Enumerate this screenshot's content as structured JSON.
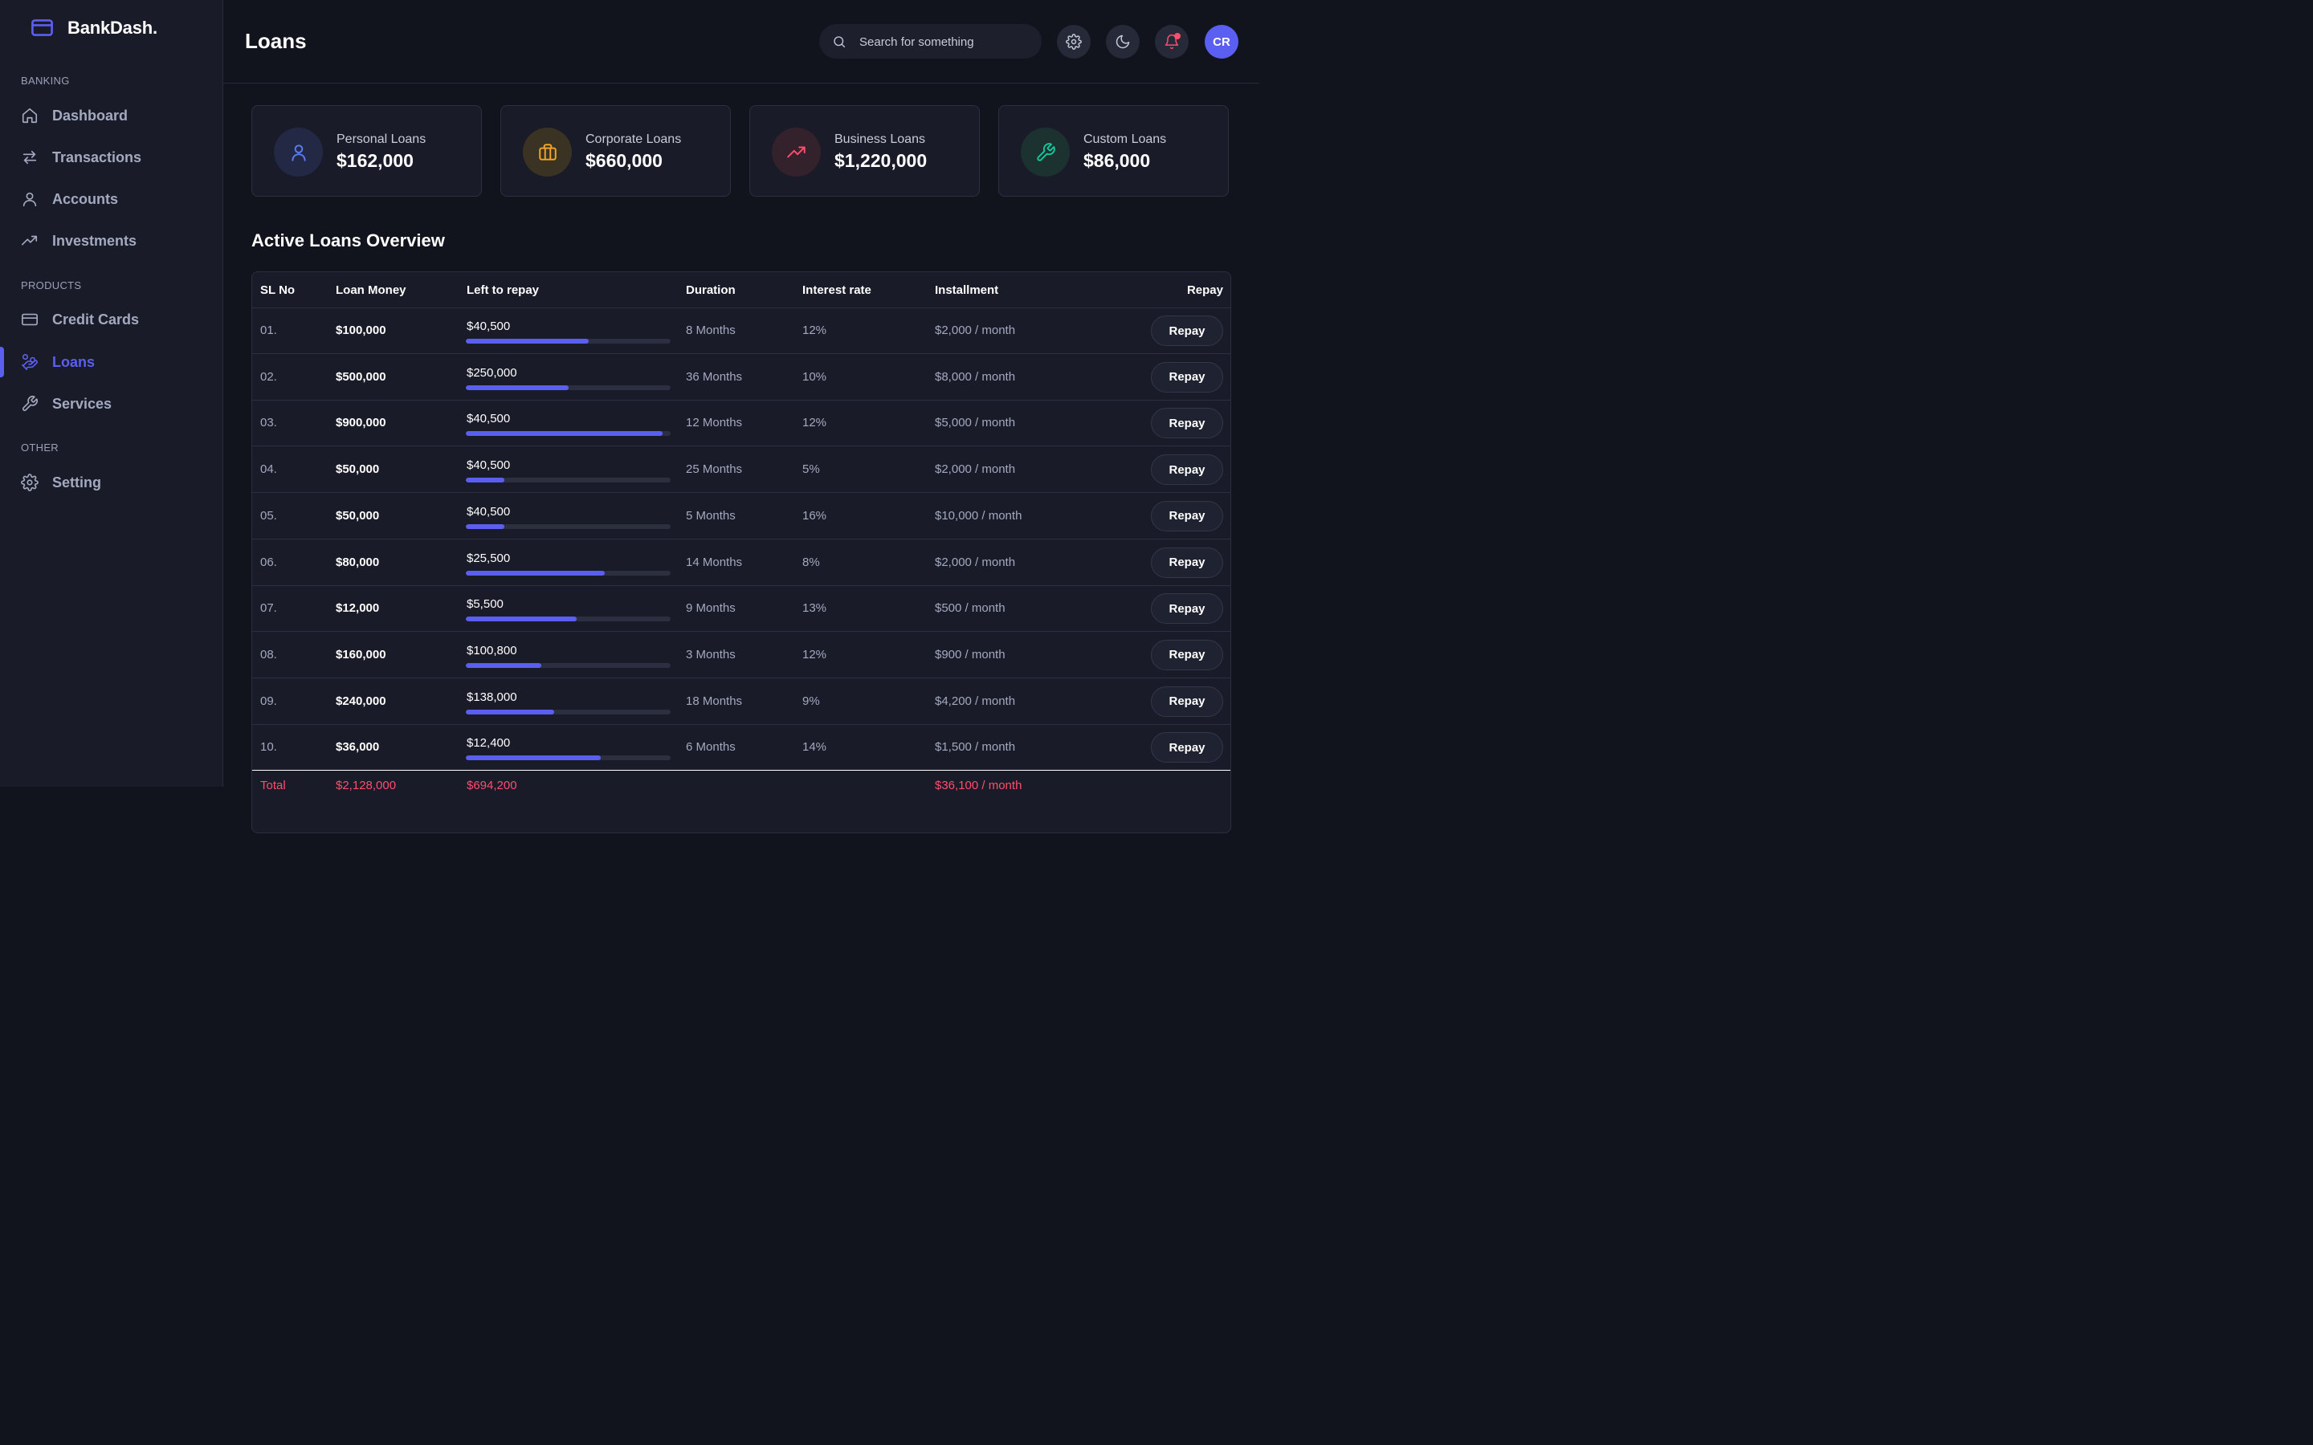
{
  "brand": {
    "name": "BankDash."
  },
  "sidebar": {
    "sections": [
      {
        "label": "BANKING",
        "items": [
          {
            "label": "Dashboard",
            "icon": "home-icon"
          },
          {
            "label": "Transactions",
            "icon": "arrows-swap-icon"
          },
          {
            "label": "Accounts",
            "icon": "user-icon"
          },
          {
            "label": "Investments",
            "icon": "trending-up-icon"
          }
        ]
      },
      {
        "label": "PRODUCTS",
        "items": [
          {
            "label": "Credit Cards",
            "icon": "credit-card-icon"
          },
          {
            "label": "Loans",
            "icon": "hand-coins-icon",
            "active": true
          },
          {
            "label": "Services",
            "icon": "wrench-icon"
          }
        ]
      },
      {
        "label": "OTHER",
        "items": [
          {
            "label": "Setting",
            "icon": "gear-icon"
          }
        ]
      }
    ]
  },
  "header": {
    "title": "Loans",
    "search_placeholder": "Search for something",
    "avatar_initials": "CR",
    "has_notification": true
  },
  "cards": [
    {
      "label": "Personal Loans",
      "value": "$162,000",
      "icon": "user-icon",
      "color": "#5b7cf7",
      "bg": "#232845"
    },
    {
      "label": "Corporate Loans",
      "value": "$660,000",
      "icon": "briefcase-icon",
      "color": "#f5a524",
      "bg": "#3a3222"
    },
    {
      "label": "Business Loans",
      "value": "$1,220,000",
      "icon": "trending-up-icon",
      "color": "#ff4d6d",
      "bg": "#33222b"
    },
    {
      "label": "Custom Loans",
      "value": "$86,000",
      "icon": "wrench-icon",
      "color": "#16c79a",
      "bg": "#1b3230"
    }
  ],
  "table": {
    "title": "Active Loans Overview",
    "headers": [
      "SL No",
      "Loan Money",
      "Left to repay",
      "Duration",
      "Interest rate",
      "Installment",
      "Repay"
    ],
    "repay_label": "Repay",
    "rows": [
      {
        "sl": "01.",
        "loan": "$100,000",
        "left": "$40,500",
        "progress": 0.6,
        "duration": "8 Months",
        "rate": "12%",
        "installment": "$2,000 / month"
      },
      {
        "sl": "02.",
        "loan": "$500,000",
        "left": "$250,000",
        "progress": 0.5,
        "duration": "36 Months",
        "rate": "10%",
        "installment": "$8,000 / month"
      },
      {
        "sl": "03.",
        "loan": "$900,000",
        "left": "$40,500",
        "progress": 0.96,
        "duration": "12 Months",
        "rate": "12%",
        "installment": "$5,000 / month"
      },
      {
        "sl": "04.",
        "loan": "$50,000",
        "left": "$40,500",
        "progress": 0.19,
        "duration": "25 Months",
        "rate": "5%",
        "installment": "$2,000 / month"
      },
      {
        "sl": "05.",
        "loan": "$50,000",
        "left": "$40,500",
        "progress": 0.19,
        "duration": "5 Months",
        "rate": "16%",
        "installment": "$10,000 / month"
      },
      {
        "sl": "06.",
        "loan": "$80,000",
        "left": "$25,500",
        "progress": 0.68,
        "duration": "14 Months",
        "rate": "8%",
        "installment": "$2,000 / month"
      },
      {
        "sl": "07.",
        "loan": "$12,000",
        "left": "$5,500",
        "progress": 0.54,
        "duration": "9 Months",
        "rate": "13%",
        "installment": "$500 / month"
      },
      {
        "sl": "08.",
        "loan": "$160,000",
        "left": "$100,800",
        "progress": 0.37,
        "duration": "3 Months",
        "rate": "12%",
        "installment": "$900 / month"
      },
      {
        "sl": "09.",
        "loan": "$240,000",
        "left": "$138,000",
        "progress": 0.43,
        "duration": "18 Months",
        "rate": "9%",
        "installment": "$4,200 / month"
      },
      {
        "sl": "10.",
        "loan": "$36,000",
        "left": "$12,400",
        "progress": 0.66,
        "duration": "6 Months",
        "rate": "14%",
        "installment": "$1,500 / month"
      }
    ],
    "total": {
      "label": "Total",
      "loan": "$2,128,000",
      "left": "$694,200",
      "installment": "$36,100 / month"
    }
  },
  "colors": {
    "accent": "#5b5ff1",
    "danger": "#ff4d6d"
  }
}
